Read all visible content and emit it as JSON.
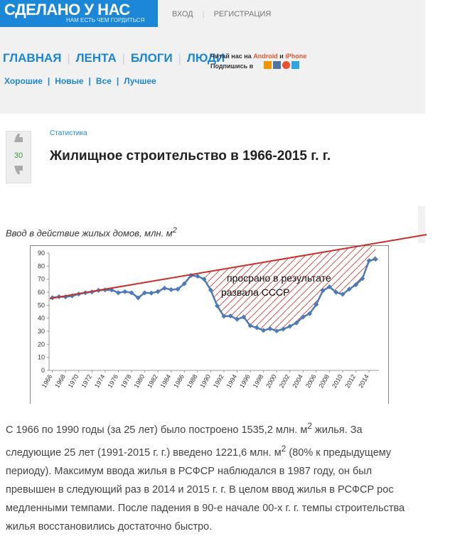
{
  "header": {
    "logo": "СДЕЛАНО У НАС",
    "slogan": "НАМ ЕСТЬ ЧЕМ ГОРДИТЬСЯ",
    "login": "ВХОД",
    "register": "РЕГИСТРАЦИЯ"
  },
  "nav": {
    "items": [
      "ГЛАВНАЯ",
      "ЛЕНТА",
      "БЛОГИ",
      "ЛЮДИ"
    ],
    "read_us": "Читай нас на",
    "android": "Android",
    "and": "и",
    "iphone": "iPhone",
    "subscribe": "Подпишись в",
    "subnav": [
      "Хорошие",
      "Новые",
      "Все",
      "Лучшее"
    ]
  },
  "post": {
    "rating": "30",
    "category": "Статистика",
    "title": "Жилищное строительство в 1966-2015 г. г."
  },
  "chart_data": {
    "type": "line",
    "title": "Ввод в действие жилых домов, млн. м",
    "title_sup": "2",
    "x": [
      1966,
      1967,
      1968,
      1969,
      1970,
      1971,
      1972,
      1973,
      1974,
      1975,
      1976,
      1977,
      1978,
      1979,
      1980,
      1981,
      1982,
      1983,
      1984,
      1985,
      1986,
      1987,
      1988,
      1989,
      1990,
      1991,
      1992,
      1993,
      1994,
      1995,
      1996,
      1997,
      1998,
      1999,
      2000,
      2001,
      2002,
      2003,
      2004,
      2005,
      2006,
      2007,
      2008,
      2009,
      2010,
      2011,
      2012,
      2013,
      2014,
      2015
    ],
    "series": [
      {
        "color": "#4a7ab8",
        "values": [
          55.8,
          56.5,
          56.4,
          57.2,
          58.6,
          59.6,
          60.2,
          61.4,
          61.8,
          61.7,
          59.6,
          60.4,
          59.6,
          55.7,
          59.5,
          59.3,
          60.5,
          63.1,
          62.0,
          62.3,
          66.5,
          72.8,
          72.3,
          70.0,
          61.7,
          49.4,
          41.5,
          41.8,
          39.2,
          41.0,
          34.3,
          32.7,
          30.7,
          32.0,
          30.3,
          31.7,
          33.8,
          36.4,
          41.0,
          43.6,
          50.6,
          61.2,
          64.1,
          59.9,
          58.4,
          62.3,
          65.7,
          70.5,
          84.2,
          85.3
        ]
      }
    ],
    "xlim": [
      1965.5,
      2015.5
    ],
    "xticks": [
      1966,
      1968,
      1970,
      1972,
      1974,
      1976,
      1978,
      1980,
      1982,
      1984,
      1986,
      1988,
      1990,
      1992,
      1994,
      1996,
      1998,
      2000,
      2002,
      2004,
      2006,
      2008,
      2010,
      2012,
      2014
    ],
    "ylim": [
      0,
      90
    ],
    "yticks": [
      0,
      10,
      20,
      30,
      40,
      50,
      60,
      70,
      80,
      90
    ],
    "grid": false,
    "annotations": [
      "просрано в результате",
      "развала СССР"
    ]
  },
  "article": {
    "paragraph": [
      "С 1966 по 1990 годы (за 25 лет) было построено 1535,2 млн. м",
      "2",
      " жилья. За следующие 25 лет (1991-2015 г. г.) введено 1221,6 млн. м",
      "2",
      " (80% к предыдущему периоду). Максимум ввода жилья в РСФСР наблюдался в 1987 году, он был превышен в следующий раз в 2014 и 2015 г. г. В целом ввод жилья в РСФСР рос медленными темпами. После падения в 90-е начале 00-х г. г. темпы строительства жилья восстановились достаточно быстро."
    ]
  }
}
